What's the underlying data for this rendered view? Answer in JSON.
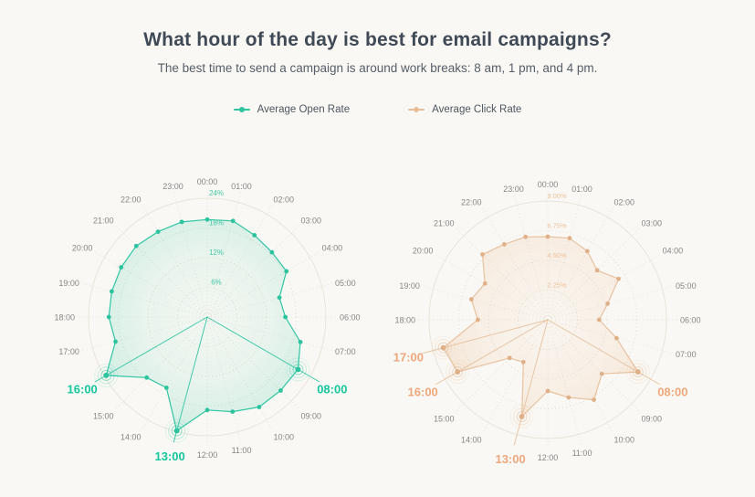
{
  "header": {
    "title": "What hour of the day is best for email campaigns?",
    "subtitle": "The best time to send a campaign is around work breaks: 8 am, 1 pm, and 4 pm."
  },
  "legend": {
    "items": [
      {
        "label": "Average Open Rate",
        "color": "#2CC5A0"
      },
      {
        "label": "Average Click Rate",
        "color": "#E9BE99"
      }
    ]
  },
  "colors": {
    "background": "#FAF8F4",
    "grid_ring": "#E3DED5",
    "grid_axis": "#E3DED5",
    "outer_ring": "#E9E4DB",
    "hour_label": "#868686"
  },
  "chart_data": [
    {
      "type": "radar",
      "name": "Average Open Rate",
      "unit": "%",
      "categories": [
        "00:00",
        "01:00",
        "02:00",
        "03:00",
        "04:00",
        "05:00",
        "06:00",
        "07:00",
        "08:00",
        "09:00",
        "10:00",
        "11:00",
        "12:00",
        "13:00",
        "14:00",
        "15:00",
        "16:00",
        "17:00",
        "18:00",
        "19:00",
        "20:00",
        "21:00",
        "22:00",
        "23:00"
      ],
      "values": [
        19.7,
        20.1,
        19.1,
        18.5,
        18.5,
        15.1,
        15.8,
        19.5,
        21.2,
        21.0,
        21.0,
        19.8,
        18.8,
        23.8,
        16.5,
        17.3,
        23.6,
        19.2,
        19.9,
        20.0,
        20.1,
        20.3,
        19.9,
        19.9
      ],
      "axis_max": 24,
      "radial_tick_values": [
        6,
        12,
        18,
        24
      ],
      "radial_tick_labels": [
        "6%",
        "12%",
        "18%",
        "24%"
      ],
      "highlighted_hours": [
        "08:00",
        "13:00",
        "16:00"
      ],
      "legend_position": "top",
      "grid": "on",
      "style": {
        "line_color": "#2FC6A2",
        "dot_color": "#2CC39E",
        "ray_color": "#2FC6A2",
        "tick_label_color": "#43C8A4",
        "highlight_label_color": "#14C79E",
        "fill_rgb": "47,198,162",
        "fill_alpha_center": 0.03,
        "fill_alpha_edge": 0.2
      }
    },
    {
      "type": "radar",
      "name": "Average Click Rate",
      "unit": "%",
      "categories": [
        "00:00",
        "01:00",
        "02:00",
        "03:00",
        "04:00",
        "05:00",
        "06:00",
        "07:00",
        "08:00",
        "09:00",
        "10:00",
        "11:00",
        "12:00",
        "13:00",
        "14:00",
        "15:00",
        "16:00",
        "17:00",
        "18:00",
        "19:00",
        "20:00",
        "21:00",
        "22:00",
        "23:00"
      ],
      "values": [
        6.3,
        6.4,
        6.0,
        5.3,
        6.2,
        4.7,
        3.9,
        5.4,
        7.9,
        5.8,
        7.0,
        6.1,
        5.4,
        7.6,
        3.7,
        4.1,
        7.9,
        8.2,
        5.3,
        6.0,
        5.5,
        7.0,
        6.6,
        6.5
      ],
      "axis_max": 9,
      "radial_tick_values": [
        2.25,
        4.5,
        6.75,
        9
      ],
      "radial_tick_labels": [
        "2.25%",
        "4.50%",
        "6.75%",
        "9.00%"
      ],
      "highlighted_hours": [
        "08:00",
        "13:00",
        "16:00",
        "17:00"
      ],
      "legend_position": "top",
      "grid": "on",
      "style": {
        "line_color": "#E7C2A0",
        "dot_color": "#E0B189",
        "ray_color": "#E4B astronomical",
        "tick_label_color": "#ECC29D",
        "highlight_label_color": "#EDA77C",
        "fill_rgb": "231,178,128",
        "fill_alpha_center": 0.04,
        "fill_alpha_edge": 0.27
      }
    }
  ]
}
